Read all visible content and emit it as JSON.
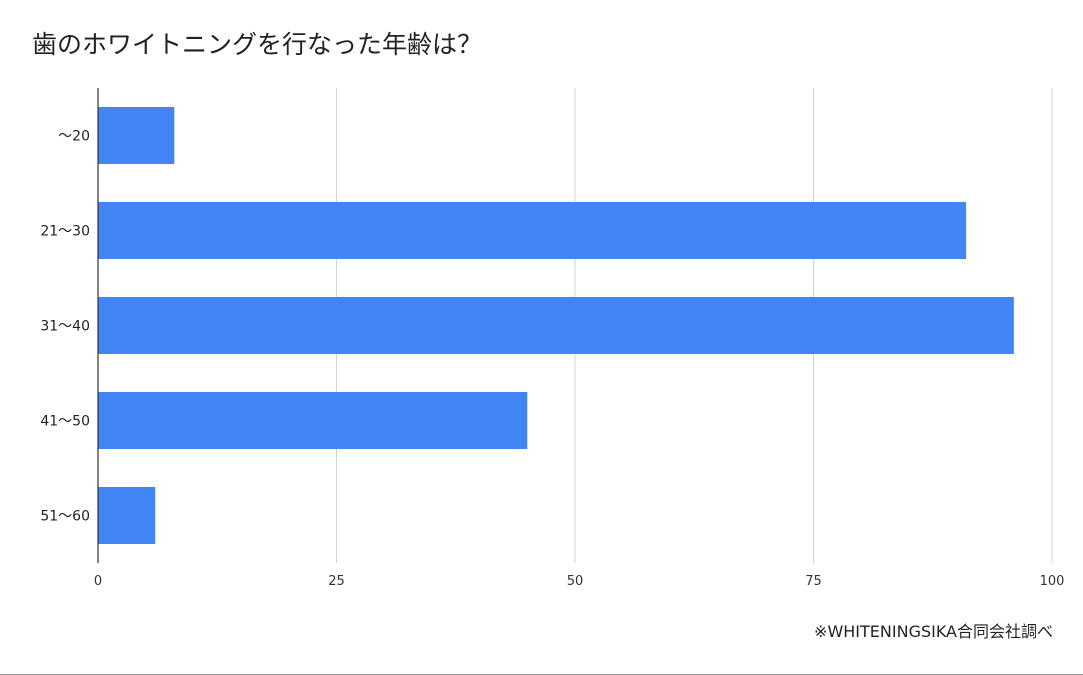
{
  "title": "歯のホワイトニングを行なった年齢は？",
  "source_note": "※WHITENINGSIKA合同会社調べ",
  "colors": {
    "bar": "#4285f4",
    "grid": "#d3d3d3",
    "axis": "#333333"
  },
  "chart_data": {
    "type": "bar",
    "orientation": "horizontal",
    "title": "歯のホワイトニングを行なった年齢は？",
    "categories": [
      "〜20",
      "21〜30",
      "31〜40",
      "41〜50",
      "51〜60"
    ],
    "values": [
      8,
      91,
      96,
      45,
      6
    ],
    "xlim": [
      0,
      100
    ],
    "x_ticks": [
      0,
      25,
      50,
      75,
      100
    ],
    "xlabel": "",
    "ylabel": "",
    "grid": true,
    "legend": "none"
  }
}
